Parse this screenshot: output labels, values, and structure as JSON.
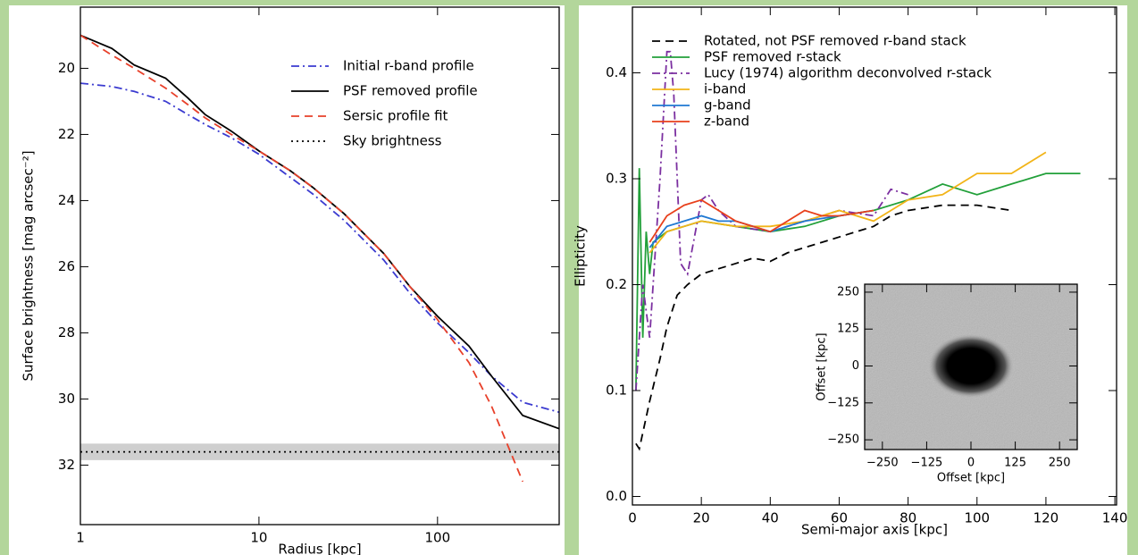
{
  "chart_data": [
    {
      "type": "line",
      "xscale": "log",
      "xlabel": "Radius [kpc]",
      "ylabel": "Surface brightness [mag arcsec⁻²]",
      "xlim": [
        1,
        480
      ],
      "ylim": [
        33.8,
        18.15
      ],
      "xticks": [
        1,
        10,
        100
      ],
      "yticks": [
        20,
        22,
        24,
        26,
        28,
        30,
        32
      ],
      "legend": "upper right",
      "x": [
        1,
        1.5,
        2,
        3,
        4,
        5,
        7,
        10,
        15,
        20,
        30,
        50,
        70,
        100,
        150,
        200,
        300,
        480
      ],
      "series": [
        {
          "name": "Initial r-band profile",
          "color": "#3b3bd0",
          "linestyle": "dashdot",
          "values": [
            20.45,
            20.55,
            20.7,
            21.0,
            21.4,
            21.7,
            22.1,
            22.6,
            23.3,
            23.8,
            24.6,
            25.8,
            26.8,
            27.7,
            28.6,
            29.3,
            30.1,
            30.4
          ]
        },
        {
          "name": "PSF removed profile",
          "color": "#000000",
          "linestyle": "solid",
          "values": [
            19.0,
            19.4,
            19.9,
            20.3,
            20.9,
            21.4,
            21.9,
            22.5,
            23.1,
            23.6,
            24.4,
            25.6,
            26.6,
            27.5,
            28.4,
            29.3,
            30.5,
            30.9
          ]
        },
        {
          "name": "Sersic profile fit",
          "color": "#e8402a",
          "linestyle": "dashed",
          "values": [
            19.0,
            19.6,
            20.0,
            20.6,
            21.1,
            21.5,
            22.0,
            22.5,
            23.1,
            23.6,
            24.4,
            25.6,
            26.6,
            27.6,
            28.9,
            30.2,
            32.5,
            null
          ]
        },
        {
          "name": "Sky brightness",
          "color": "#000000",
          "linestyle": "dotted",
          "values": [
            31.6,
            31.6,
            31.6,
            31.6,
            31.6,
            31.6,
            31.6,
            31.6,
            31.6,
            31.6,
            31.6,
            31.6,
            31.6,
            31.6,
            31.6,
            31.6,
            31.6,
            31.6
          ]
        }
      ],
      "sky_band": [
        31.35,
        31.85
      ]
    },
    {
      "type": "line",
      "xlabel": "Semi-major axis [kpc]",
      "ylabel": "Ellipticity",
      "xlim": [
        0,
        140.5
      ],
      "ylim": [
        -0.008,
        0.462
      ],
      "xticks": [
        0,
        20,
        40,
        60,
        80,
        100,
        120,
        140
      ],
      "yticks": [
        {
          "value": 0,
          "label": "0.0"
        },
        0.1,
        0.2,
        0.3,
        0.4
      ],
      "legend": "upper left",
      "series": [
        {
          "name": "Rotated, not PSF removed r-band stack",
          "color": "#000000",
          "linestyle": "dashed",
          "x": [
            1,
            2,
            3,
            5,
            8,
            10,
            13,
            16,
            20,
            25,
            30,
            35,
            40,
            45,
            50,
            55,
            60,
            65,
            70,
            75,
            80,
            90,
            100,
            110
          ],
          "values": [
            0.05,
            0.045,
            0.06,
            0.09,
            0.13,
            0.16,
            0.19,
            0.2,
            0.21,
            0.215,
            0.22,
            0.225,
            0.222,
            0.23,
            0.235,
            0.24,
            0.245,
            0.25,
            0.255,
            0.265,
            0.27,
            0.275,
            0.275,
            0.27
          ]
        },
        {
          "name": "PSF removed r-stack",
          "color": "#22a03a",
          "linestyle": "solid",
          "x": [
            1,
            2,
            3,
            4,
            5,
            6,
            8,
            10,
            15,
            20,
            30,
            40,
            50,
            60,
            70,
            80,
            90,
            100,
            110,
            120,
            130
          ],
          "values": [
            0.1,
            0.31,
            0.15,
            0.25,
            0.21,
            0.24,
            0.245,
            0.25,
            0.255,
            0.26,
            0.255,
            0.25,
            0.255,
            0.265,
            0.27,
            0.28,
            0.295,
            0.285,
            0.295,
            0.305,
            0.305
          ]
        },
        {
          "name": "Lucy (1974) algorithm deconvolved r-stack",
          "color": "#7b2fa0",
          "linestyle": "dashdot",
          "x": [
            1,
            3,
            5,
            8,
            10,
            11,
            12,
            14,
            16,
            20,
            22,
            25,
            30,
            40,
            50,
            60,
            70,
            75,
            80
          ],
          "values": [
            0.1,
            0.2,
            0.15,
            0.3,
            0.42,
            0.42,
            0.38,
            0.22,
            0.21,
            0.28,
            0.285,
            0.27,
            0.255,
            0.25,
            0.26,
            0.27,
            0.265,
            0.29,
            0.285
          ]
        },
        {
          "name": "i-band",
          "color": "#f2b418",
          "linestyle": "solid",
          "x": [
            5,
            10,
            15,
            20,
            30,
            40,
            50,
            60,
            70,
            80,
            90,
            100,
            110,
            120
          ],
          "values": [
            0.23,
            0.25,
            0.255,
            0.26,
            0.255,
            0.255,
            0.26,
            0.27,
            0.26,
            0.28,
            0.285,
            0.305,
            0.305,
            0.325
          ]
        },
        {
          "name": "g-band",
          "color": "#1f78d2",
          "linestyle": "solid",
          "x": [
            5,
            10,
            15,
            20,
            25,
            30,
            40,
            50,
            60,
            70
          ],
          "values": [
            0.235,
            0.255,
            0.26,
            0.265,
            0.26,
            0.26,
            0.25,
            0.26,
            0.265,
            0.27
          ]
        },
        {
          "name": "z-band",
          "color": "#e8401c",
          "linestyle": "solid",
          "x": [
            5,
            10,
            15,
            20,
            25,
            30,
            40,
            50,
            55,
            60,
            70
          ],
          "values": [
            0.24,
            0.265,
            0.275,
            0.28,
            0.27,
            0.26,
            0.25,
            0.27,
            0.265,
            0.265,
            0.27
          ]
        }
      ]
    },
    {
      "type": "image",
      "xlabel": "Offset [kpc]",
      "ylabel": "Offset [kpc]",
      "xlim": [
        -300,
        300
      ],
      "ylim": [
        -283,
        277
      ],
      "xticks": [
        {
          "value": -250,
          "label": "−250"
        },
        {
          "value": -125,
          "label": "−125"
        },
        0,
        125,
        250
      ],
      "yticks": [
        {
          "value": -250,
          "label": "−250"
        },
        {
          "value": -125,
          "label": "−125"
        },
        0,
        125,
        250
      ]
    }
  ]
}
